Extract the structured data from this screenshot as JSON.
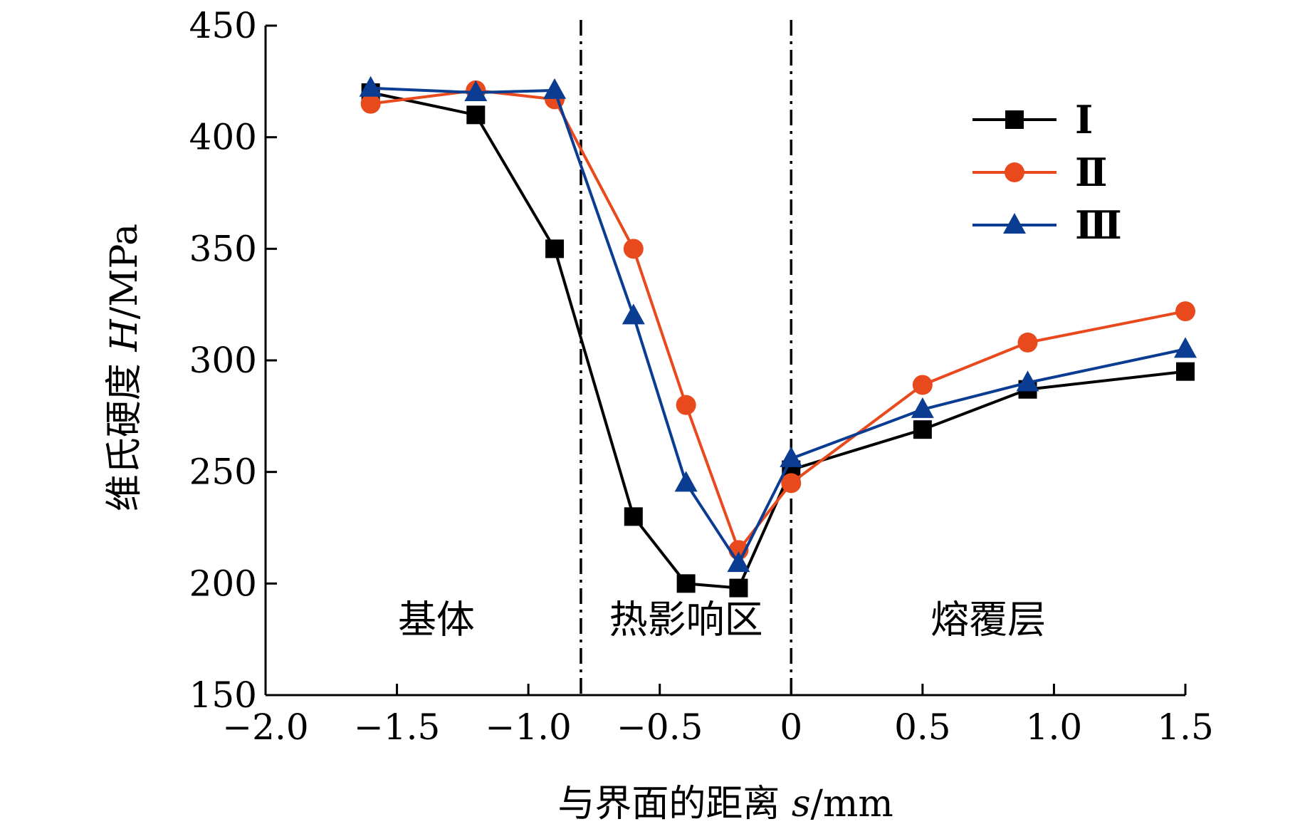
{
  "chart_data": {
    "type": "line",
    "xlabel_text": "与界面的距离",
    "xlabel_var": "s",
    "xlabel_unit": "/mm",
    "ylabel_text": "维氏硬度",
    "ylabel_var": "H",
    "ylabel_unit": "/MPa",
    "xlim": [
      -2.0,
      1.5
    ],
    "ylim": [
      150,
      450
    ],
    "x_ticks": [
      -2.0,
      -1.5,
      -1.0,
      -0.5,
      0,
      0.5,
      1.0,
      1.5
    ],
    "x_tick_labels": [
      "−2.0",
      "−1.5",
      "−1.0",
      "−0.5",
      "0",
      "0.5",
      "1.0",
      "1.5"
    ],
    "y_ticks": [
      150,
      200,
      250,
      300,
      350,
      400,
      450
    ],
    "y_tick_labels": [
      "150",
      "200",
      "250",
      "300",
      "350",
      "400",
      "450"
    ],
    "grid": false,
    "legend_position": "top-right",
    "boundaries": [
      -0.8,
      0
    ],
    "regions": [
      {
        "label": "基体",
        "x": -1.35
      },
      {
        "label": "热影响区",
        "x": -0.4
      },
      {
        "label": "熔覆层",
        "x": 0.75
      }
    ],
    "series": [
      {
        "name": "Ⅰ",
        "color": "#000000",
        "marker": "square",
        "x": [
          -1.6,
          -1.2,
          -0.9,
          -0.6,
          -0.4,
          -0.2,
          0,
          0.5,
          0.9,
          1.5
        ],
        "y": [
          420,
          410,
          350,
          230,
          200,
          198,
          251,
          269,
          287,
          295
        ]
      },
      {
        "name": "Ⅱ",
        "color": "#e8491d",
        "marker": "circle",
        "x": [
          -1.6,
          -1.2,
          -0.9,
          -0.6,
          -0.4,
          -0.2,
          0,
          0.5,
          0.9,
          1.5
        ],
        "y": [
          415,
          421,
          417,
          350,
          280,
          215,
          245,
          289,
          308,
          322
        ]
      },
      {
        "name": "Ⅲ",
        "color": "#0a3d91",
        "marker": "triangle",
        "x": [
          -1.6,
          -1.2,
          -0.9,
          -0.6,
          -0.4,
          -0.2,
          0,
          0.5,
          0.9,
          1.5
        ],
        "y": [
          422,
          420,
          421,
          320,
          245,
          209,
          256,
          278,
          290,
          305
        ]
      }
    ]
  }
}
